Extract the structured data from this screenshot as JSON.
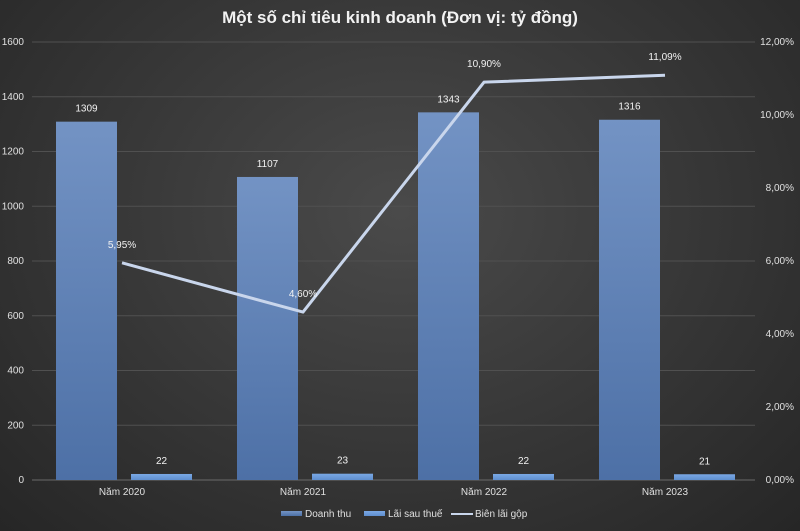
{
  "chart_data": {
    "type": "bar+line",
    "title": "Một số chỉ tiêu kinh doanh (Đơn vị: tỷ đồng)",
    "categories": [
      "Năm 2020",
      "Năm 2021",
      "Năm 2022",
      "Năm 2023"
    ],
    "series": [
      {
        "name": "Doanh thu",
        "type": "bar",
        "axis": "left",
        "values": [
          1309,
          1107,
          1343,
          1316
        ],
        "labels": [
          "1309",
          "1107",
          "1343",
          "1316"
        ],
        "color": "#6a8cc0"
      },
      {
        "name": "Lãi sau thuế",
        "type": "bar",
        "axis": "left",
        "values": [
          22,
          23,
          22,
          21
        ],
        "labels": [
          "22",
          "23",
          "22",
          "21"
        ],
        "color": "#6f9fdc"
      },
      {
        "name": "Biên lãi gộp",
        "type": "line",
        "axis": "right",
        "values": [
          5.95,
          4.6,
          10.9,
          11.09
        ],
        "labels": [
          "5,95%",
          "4,60%",
          "10,90%",
          "11,09%"
        ],
        "color": "#c9d6ec"
      }
    ],
    "ylim": [
      0,
      1600
    ],
    "yticks": [
      "0",
      "200",
      "400",
      "600",
      "800",
      "1000",
      "1200",
      "1400",
      "1600"
    ],
    "y2lim": [
      0,
      12
    ],
    "y2ticks": [
      "0,00%",
      "2,00%",
      "4,00%",
      "6,00%",
      "8,00%",
      "10,00%",
      "12,00%"
    ],
    "grid": true,
    "legend": "bottom"
  }
}
